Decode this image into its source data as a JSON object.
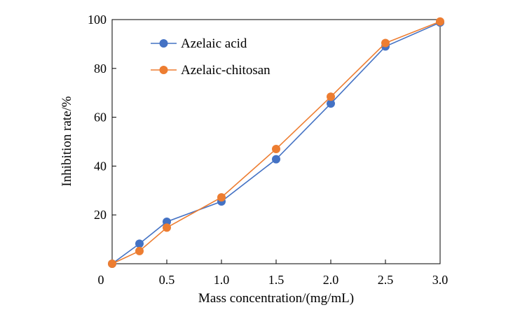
{
  "chart_data": {
    "type": "line",
    "xlabel": "Mass concentration/(mg/mL)",
    "ylabel": "Inhibition rate/%",
    "xlim": [
      0,
      3.0
    ],
    "ylim": [
      0,
      100
    ],
    "x_ticks": [
      {
        "value": 0,
        "label": "0"
      },
      {
        "value": 0.5,
        "label": "0.5"
      },
      {
        "value": 1.0,
        "label": "1.0"
      },
      {
        "value": 1.5,
        "label": "1.5"
      },
      {
        "value": 2.0,
        "label": "2.0"
      },
      {
        "value": 2.5,
        "label": "2.5"
      },
      {
        "value": 3.0,
        "label": "3.0"
      }
    ],
    "y_ticks": [
      {
        "value": 20,
        "label": "20"
      },
      {
        "value": 40,
        "label": "40"
      },
      {
        "value": 60,
        "label": "60"
      },
      {
        "value": 80,
        "label": "80"
      },
      {
        "value": 100,
        "label": "100"
      }
    ],
    "grid": false,
    "legend_position": "top-left",
    "series": [
      {
        "name": "Azelaic acid",
        "color": "#4472C4",
        "x": [
          0,
          0.25,
          0.5,
          1.0,
          1.5,
          2.0,
          2.5,
          3.0
        ],
        "y": [
          0,
          8.2,
          17.2,
          25.5,
          42.8,
          65.6,
          89.0,
          98.8
        ]
      },
      {
        "name": "Azelaic-chitosan",
        "color": "#ED7D31",
        "x": [
          0,
          0.25,
          0.5,
          1.0,
          1.5,
          2.0,
          2.5,
          3.0
        ],
        "y": [
          0,
          5.2,
          14.8,
          27.2,
          47.0,
          68.4,
          90.4,
          99.2
        ]
      }
    ]
  }
}
